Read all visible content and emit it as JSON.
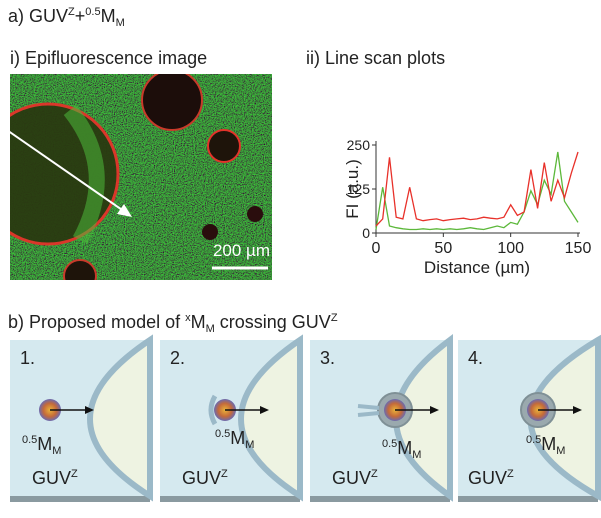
{
  "panel_a": {
    "label": "a)",
    "name": "GUV",
    "sup1": "Z",
    "plus": "+",
    "sup2": "0.5",
    "main": "M",
    "sub": "M"
  },
  "image_panel": {
    "label": "i) Epifluorescence image",
    "scale_bar": "200 µm"
  },
  "plot_panel": {
    "label": "ii) Line scan plots"
  },
  "chart_data": {
    "type": "line",
    "x_label": "Distance (µm)",
    "y_label": "FI (a.u.)",
    "x": [
      0,
      5,
      10,
      15,
      20,
      25,
      30,
      35,
      40,
      45,
      50,
      55,
      60,
      65,
      70,
      75,
      80,
      85,
      90,
      95,
      100,
      105,
      110,
      115,
      120,
      125,
      130,
      135,
      140,
      145,
      150
    ],
    "series": [
      {
        "name": "red",
        "color": "#e8312a",
        "values": [
          20,
          40,
          215,
          45,
          40,
          130,
          40,
          35,
          38,
          40,
          35,
          38,
          40,
          42,
          38,
          40,
          45,
          42,
          40,
          45,
          80,
          50,
          60,
          180,
          70,
          200,
          90,
          150,
          100,
          170,
          230
        ]
      },
      {
        "name": "green",
        "color": "#5cb83a",
        "values": [
          10,
          130,
          20,
          15,
          12,
          10,
          10,
          12,
          10,
          12,
          10,
          12,
          10,
          12,
          15,
          12,
          10,
          15,
          20,
          15,
          30,
          25,
          60,
          120,
          80,
          150,
          110,
          230,
          90,
          60,
          30
        ]
      }
    ],
    "xlim": [
      0,
      150
    ],
    "xticks": [
      0,
      50,
      100,
      150
    ],
    "ylim": [
      0,
      250
    ],
    "yticks": [
      0,
      125,
      250
    ]
  },
  "panel_b": {
    "label": "b) Proposed model of ",
    "sup": "x",
    "main": "M",
    "sub": "M",
    "middle": " crossing GUV",
    "sup2": "Z"
  },
  "steps": [
    {
      "number": "1.",
      "particle_sup": "0.5",
      "particle_main": "M",
      "particle_sub": "M",
      "vesicle": "GUV",
      "vesicle_sup": "Z"
    },
    {
      "number": "2.",
      "particle_sup": "0.5",
      "particle_main": "M",
      "particle_sub": "M",
      "vesicle": "GUV",
      "vesicle_sup": "Z"
    },
    {
      "number": "3.",
      "particle_sup": "0.5",
      "particle_main": "M",
      "particle_sub": "M",
      "vesicle": "GUV",
      "vesicle_sup": "Z"
    },
    {
      "number": "4.",
      "particle_sup": "0.5",
      "particle_main": "M",
      "particle_sub": "M",
      "vesicle": "GUV",
      "vesicle_sup": "Z"
    }
  ]
}
